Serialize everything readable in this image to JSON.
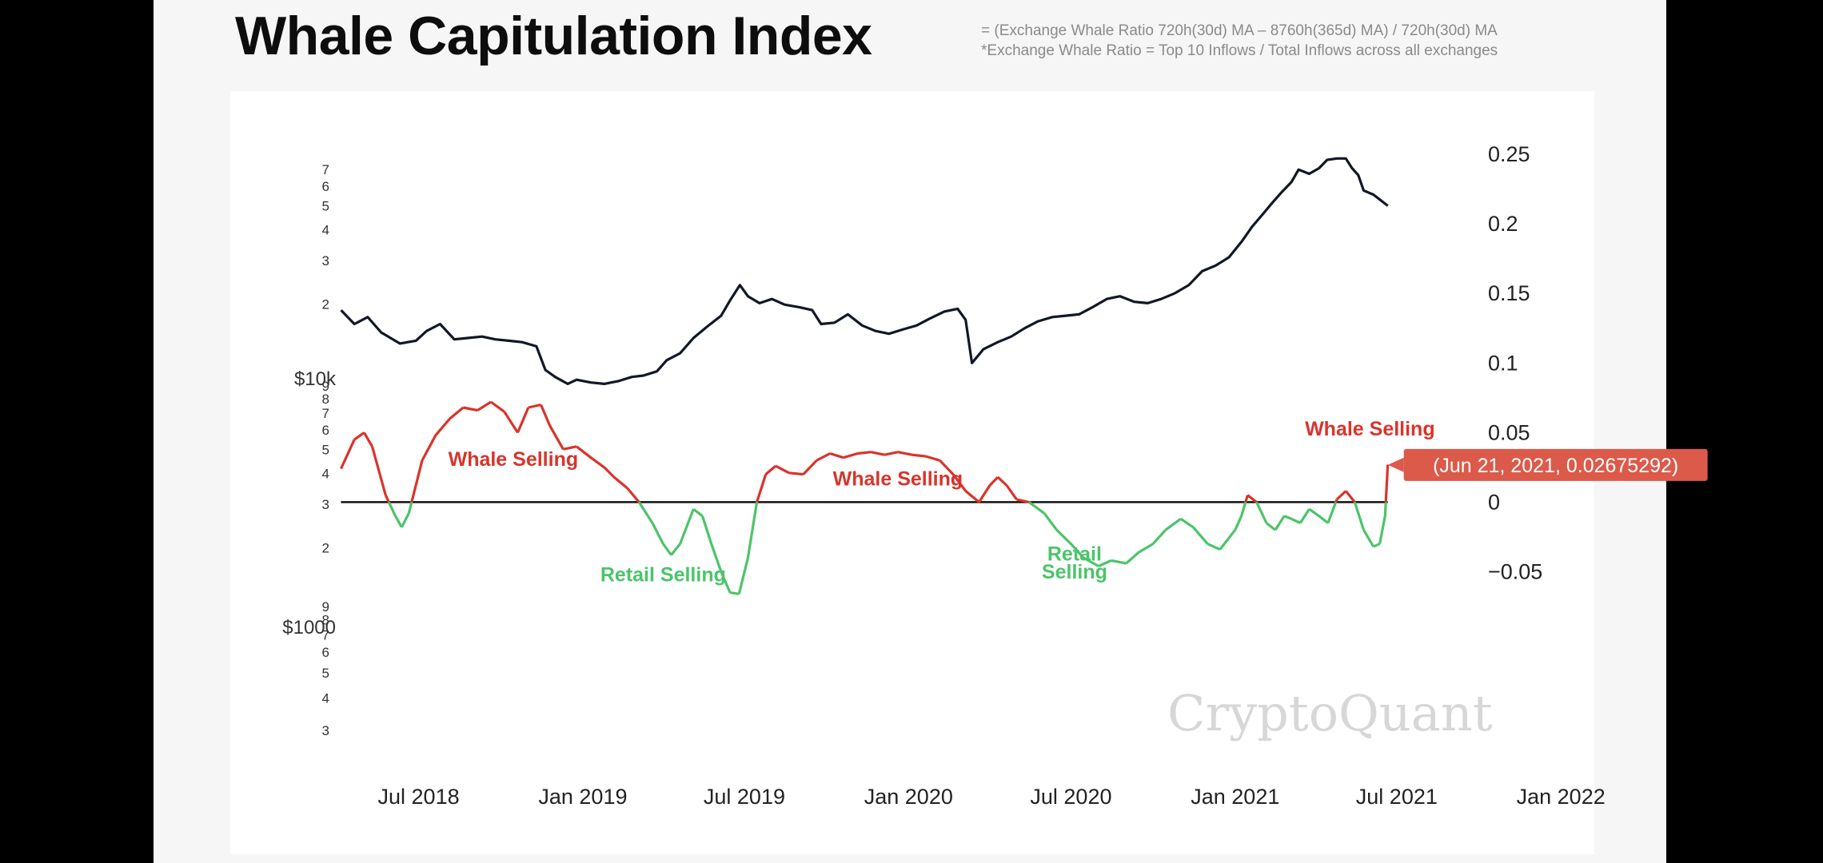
{
  "header": {
    "title": "Whale Capitulation Index",
    "formula_line1": "= (Exchange Whale Ratio 720h(30d) MA – 8760h(365d) MA) / 720h(30d) MA",
    "formula_line2": "*Exchange Whale Ratio = Top 10 Inflows / Total Inflows across all exchanges"
  },
  "colors": {
    "price": "#111827",
    "positive": "#d9342b",
    "negative": "#4cc46a",
    "zero_line": "#111111",
    "tooltip_bg": "#dc5a4a"
  },
  "chart_data": {
    "type": "line",
    "x_axis": {
      "tick_labels": [
        "Jul 2018",
        "Jan 2019",
        "Jul 2019",
        "Jan 2020",
        "Jul 2020",
        "Jan 2021",
        "Jul 2021",
        "Jan 2022"
      ],
      "tick_dates": [
        "2018-07-01",
        "2019-01-01",
        "2019-07-01",
        "2020-01-01",
        "2020-07-01",
        "2021-01-01",
        "2021-07-01",
        "2022-01-01"
      ],
      "range": [
        "2018-04-01",
        "2022-02-20"
      ]
    },
    "y_left": {
      "scale": "log",
      "range": [
        2500,
        80000
      ],
      "major_labels": [
        {
          "value": 10000,
          "label": "$10k"
        },
        {
          "value": 1000,
          "label": "$1000"
        }
      ],
      "minor_labels": [
        {
          "value": 70000,
          "label": "7"
        },
        {
          "value": 60000,
          "label": "6"
        },
        {
          "value": 50000,
          "label": "5"
        },
        {
          "value": 40000,
          "label": "4"
        },
        {
          "value": 30000,
          "label": "3"
        },
        {
          "value": 20000,
          "label": "2"
        },
        {
          "value": 9000,
          "label": "9"
        },
        {
          "value": 8000,
          "label": "8"
        },
        {
          "value": 7000,
          "label": "7"
        },
        {
          "value": 6000,
          "label": "6"
        },
        {
          "value": 5000,
          "label": "5"
        },
        {
          "value": 4000,
          "label": "4"
        },
        {
          "value": 3000,
          "label": "3"
        },
        {
          "value": 2000,
          "label": "2"
        },
        {
          "value": 900,
          "label": "9"
        },
        {
          "value": 800,
          "label": "8"
        },
        {
          "value": 700,
          "label": "7"
        },
        {
          "value": 600,
          "label": "6"
        },
        {
          "value": 500,
          "label": "5"
        },
        {
          "value": 400,
          "label": "4"
        },
        {
          "value": 300,
          "label": "3"
        }
      ]
    },
    "y_right": {
      "range": [
        -0.075,
        0.265
      ],
      "tick_labels": [
        {
          "value": 0.25,
          "label": "0.25"
        },
        {
          "value": 0.2,
          "label": "0.2"
        },
        {
          "value": 0.15,
          "label": "0.15"
        },
        {
          "value": 0.1,
          "label": "0.1"
        },
        {
          "value": 0.05,
          "label": "0.05"
        },
        {
          "value": 0,
          "label": "0"
        },
        {
          "value": -0.05,
          "label": "−0.05"
        }
      ]
    },
    "price_series": {
      "axis": "right",
      "x": [
        "2018-04-05",
        "2018-04-20",
        "2018-05-05",
        "2018-05-20",
        "2018-06-10",
        "2018-06-28",
        "2018-07-10",
        "2018-07-25",
        "2018-08-10",
        "2018-08-25",
        "2018-09-10",
        "2018-09-25",
        "2018-10-10",
        "2018-10-25",
        "2018-11-10",
        "2018-11-20",
        "2018-12-01",
        "2018-12-15",
        "2018-12-25",
        "2019-01-10",
        "2019-01-25",
        "2019-02-10",
        "2019-02-25",
        "2019-03-10",
        "2019-03-25",
        "2019-04-05",
        "2019-04-20",
        "2019-05-05",
        "2019-05-20",
        "2019-06-05",
        "2019-06-15",
        "2019-06-26",
        "2019-07-05",
        "2019-07-18",
        "2019-08-01",
        "2019-08-15",
        "2019-09-01",
        "2019-09-15",
        "2019-09-25",
        "2019-10-10",
        "2019-10-25",
        "2019-11-10",
        "2019-11-25",
        "2019-12-10",
        "2019-12-25",
        "2020-01-10",
        "2020-01-25",
        "2020-02-10",
        "2020-02-25",
        "2020-03-05",
        "2020-03-12",
        "2020-03-25",
        "2020-04-10",
        "2020-04-25",
        "2020-05-10",
        "2020-05-25",
        "2020-06-10",
        "2020-06-25",
        "2020-07-10",
        "2020-07-25",
        "2020-08-10",
        "2020-08-25",
        "2020-09-10",
        "2020-09-25",
        "2020-10-10",
        "2020-10-25",
        "2020-11-10",
        "2020-11-25",
        "2020-12-10",
        "2020-12-25",
        "2021-01-08",
        "2021-01-20",
        "2021-02-01",
        "2021-02-10",
        "2021-02-21",
        "2021-03-05",
        "2021-03-13",
        "2021-03-25",
        "2021-04-05",
        "2021-04-14",
        "2021-04-25",
        "2021-05-05",
        "2021-05-12",
        "2021-05-19",
        "2021-05-25",
        "2021-06-05",
        "2021-06-15",
        "2021-06-21"
      ],
      "y": [
        0.138,
        0.128,
        0.133,
        0.122,
        0.114,
        0.116,
        0.123,
        0.128,
        0.117,
        0.118,
        0.119,
        0.117,
        0.116,
        0.115,
        0.112,
        0.095,
        0.09,
        0.085,
        0.088,
        0.086,
        0.085,
        0.087,
        0.09,
        0.091,
        0.094,
        0.102,
        0.107,
        0.118,
        0.126,
        0.134,
        0.145,
        0.156,
        0.148,
        0.143,
        0.146,
        0.142,
        0.14,
        0.138,
        0.128,
        0.129,
        0.135,
        0.127,
        0.123,
        0.121,
        0.124,
        0.127,
        0.132,
        0.137,
        0.139,
        0.131,
        0.1,
        0.11,
        0.115,
        0.119,
        0.125,
        0.13,
        0.133,
        0.134,
        0.135,
        0.14,
        0.146,
        0.148,
        0.144,
        0.143,
        0.146,
        0.15,
        0.156,
        0.166,
        0.17,
        0.176,
        0.187,
        0.198,
        0.207,
        0.214,
        0.222,
        0.23,
        0.239,
        0.236,
        0.24,
        0.246,
        0.247,
        0.247,
        0.24,
        0.235,
        0.224,
        0.221,
        0.216,
        0.213
      ]
    },
    "index_series": {
      "name": "Whale Capitulation Index",
      "axis": "right",
      "x": [
        "2018-04-05",
        "2018-04-20",
        "2018-05-01",
        "2018-05-10",
        "2018-05-25",
        "2018-06-05",
        "2018-06-12",
        "2018-06-20",
        "2018-07-05",
        "2018-07-20",
        "2018-08-05",
        "2018-08-20",
        "2018-09-05",
        "2018-09-20",
        "2018-10-05",
        "2018-10-20",
        "2018-11-01",
        "2018-11-15",
        "2018-11-25",
        "2018-12-10",
        "2018-12-25",
        "2019-01-10",
        "2019-01-25",
        "2019-02-05",
        "2019-02-20",
        "2019-03-05",
        "2019-03-20",
        "2019-04-01",
        "2019-04-10",
        "2019-04-20",
        "2019-05-05",
        "2019-05-15",
        "2019-05-25",
        "2019-06-05",
        "2019-06-15",
        "2019-06-25",
        "2019-07-05",
        "2019-07-15",
        "2019-07-25",
        "2019-08-05",
        "2019-08-20",
        "2019-09-05",
        "2019-09-20",
        "2019-10-05",
        "2019-10-20",
        "2019-11-05",
        "2019-11-20",
        "2019-12-05",
        "2019-12-20",
        "2020-01-05",
        "2020-01-20",
        "2020-02-05",
        "2020-02-20",
        "2020-03-05",
        "2020-03-20",
        "2020-04-01",
        "2020-04-10",
        "2020-04-20",
        "2020-05-01",
        "2020-05-15",
        "2020-06-01",
        "2020-06-15",
        "2020-07-01",
        "2020-07-15",
        "2020-08-01",
        "2020-08-15",
        "2020-09-01",
        "2020-09-15",
        "2020-10-01",
        "2020-10-15",
        "2020-11-01",
        "2020-11-15",
        "2020-12-01",
        "2020-12-15",
        "2021-01-01",
        "2021-01-08",
        "2021-01-15",
        "2021-01-25",
        "2021-02-05",
        "2021-02-15",
        "2021-02-25",
        "2021-03-05",
        "2021-03-15",
        "2021-03-25",
        "2021-04-05",
        "2021-04-15",
        "2021-04-25",
        "2021-05-05",
        "2021-05-15",
        "2021-05-25",
        "2021-06-05",
        "2021-06-12",
        "2021-06-18",
        "2021-06-21"
      ],
      "y": [
        0.024,
        0.045,
        0.05,
        0.04,
        0.005,
        -0.01,
        -0.018,
        -0.008,
        0.03,
        0.048,
        0.06,
        0.068,
        0.066,
        0.072,
        0.065,
        0.05,
        0.068,
        0.07,
        0.055,
        0.038,
        0.04,
        0.032,
        0.025,
        0.018,
        0.01,
        0.0,
        -0.015,
        -0.03,
        -0.038,
        -0.03,
        -0.005,
        -0.01,
        -0.03,
        -0.05,
        -0.065,
        -0.066,
        -0.04,
        0.0,
        0.02,
        0.026,
        0.021,
        0.02,
        0.03,
        0.035,
        0.032,
        0.035,
        0.036,
        0.034,
        0.036,
        0.034,
        0.033,
        0.03,
        0.02,
        0.008,
        0.0,
        0.012,
        0.018,
        0.012,
        0.002,
        0.0,
        -0.008,
        -0.02,
        -0.03,
        -0.04,
        -0.046,
        -0.042,
        -0.044,
        -0.036,
        -0.03,
        -0.02,
        -0.012,
        -0.018,
        -0.03,
        -0.034,
        -0.02,
        -0.01,
        0.005,
        0.0,
        -0.015,
        -0.02,
        -0.01,
        -0.012,
        -0.015,
        -0.005,
        -0.01,
        -0.015,
        0.002,
        0.008,
        0.0,
        -0.02,
        -0.032,
        -0.03,
        -0.01,
        0.027
      ]
    },
    "zero_line": {
      "value": 0,
      "from": "2018-04-05",
      "to": "2021-06-21"
    },
    "annotations": [
      {
        "text": "Whale Selling",
        "x": "2018-10-15",
        "y": 0.026,
        "color": "#d9342b"
      },
      {
        "text": "Whale Selling",
        "x": "2019-12-20",
        "y": 0.012,
        "color": "#d9342b"
      },
      {
        "text": "Whale Selling",
        "x": "2021-06-01",
        "y": 0.048,
        "color": "#d9342b"
      },
      {
        "text": "Retail Selling",
        "x": "2019-04-01",
        "y": -0.057,
        "color": "#4cc46a"
      },
      {
        "text": "Retail",
        "x": "2020-07-05",
        "y": -0.042,
        "color": "#4cc46a"
      },
      {
        "text": "Selling",
        "x": "2020-07-05",
        "y": -0.055,
        "color": "#4cc46a"
      }
    ],
    "tooltip": {
      "text": "(Jun 21, 2021, 0.02675292)",
      "x": "2021-06-21",
      "y": 0.02675292
    },
    "watermark": "CryptoQuant"
  }
}
